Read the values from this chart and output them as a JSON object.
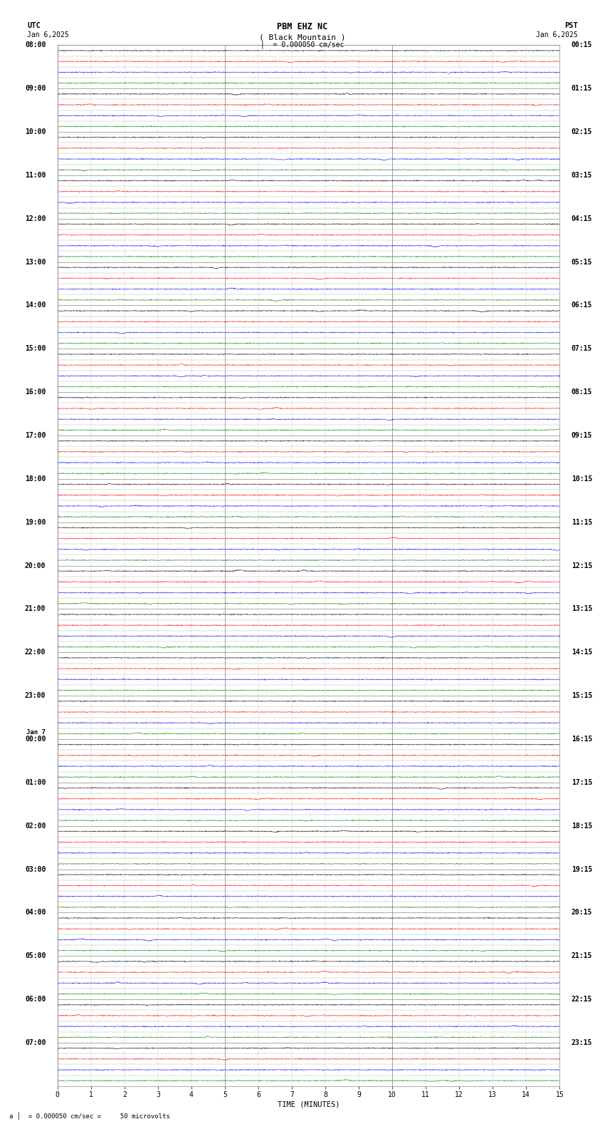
{
  "title_line1": "PBM EHZ NC",
  "title_line2": "( Black Mountain )",
  "scale_text": "= 0.000050 cm/sec",
  "utc_label": "UTC",
  "pst_label": "PST",
  "left_date": "Jan 6,2025",
  "right_date": "Jan 6,2025",
  "xlabel": "TIME (MINUTES)",
  "bottom_note": "= 0.000050 cm/sec =     50 microvolts",
  "minutes_per_row": 15,
  "bg_color": "#ffffff",
  "label_fontsize": 7.0,
  "title_fontsize": 8.5,
  "utc_times": [
    "08:00",
    "09:00",
    "10:00",
    "11:00",
    "12:00",
    "13:00",
    "14:00",
    "15:00",
    "16:00",
    "17:00",
    "18:00",
    "19:00",
    "20:00",
    "21:00",
    "22:00",
    "23:00",
    "00:00",
    "01:00",
    "02:00",
    "03:00",
    "04:00",
    "05:00",
    "06:00",
    "07:00"
  ],
  "pst_times": [
    "00:15",
    "01:15",
    "02:15",
    "03:15",
    "04:15",
    "05:15",
    "06:15",
    "07:15",
    "08:15",
    "09:15",
    "10:15",
    "11:15",
    "12:15",
    "13:15",
    "14:15",
    "15:15",
    "16:15",
    "17:15",
    "18:15",
    "19:15",
    "20:15",
    "21:15",
    "22:15",
    "23:15"
  ],
  "jan7_hour_index": 16,
  "num_hours": 24,
  "subrows_per_hour": 4,
  "row_colors": [
    "black",
    "red",
    "blue",
    "green"
  ],
  "trace_amplitude": 0.12,
  "noise_scale": 0.025
}
